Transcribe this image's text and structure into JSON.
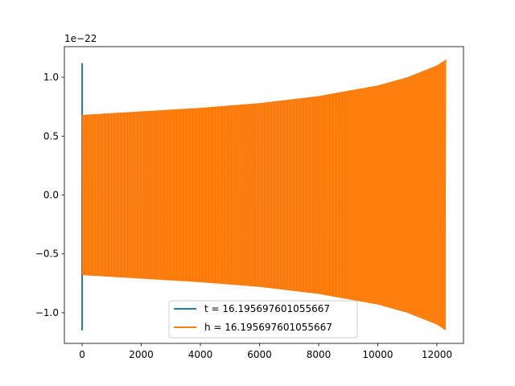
{
  "chart_data": {
    "type": "line",
    "title": "",
    "xlabel": "",
    "ylabel": "",
    "offset_text": "1e−22",
    "xlim": [
      -600,
      12900
    ],
    "ylim": [
      -1.26,
      1.26
    ],
    "xticks": [
      0,
      2000,
      4000,
      6000,
      8000,
      10000,
      12000
    ],
    "xtick_labels": [
      "0",
      "2000",
      "4000",
      "6000",
      "8000",
      "10000",
      "12000"
    ],
    "yticks": [
      1.0,
      0.5,
      0.0,
      -0.5,
      -1.0
    ],
    "ytick_labels": [
      "1.0",
      "0.5",
      "0.0",
      "−0.5",
      "−1.0"
    ],
    "grid": false,
    "legend_position": "lower-center",
    "series": [
      {
        "name": "t = 16.195697601055667",
        "color": "#1f77b4",
        "description_points": {
          "x": [
            0,
            0,
            0
          ],
          "y": [
            1.12,
            -1.15,
            0.05
          ]
        }
      },
      {
        "name": "h = 16.195697601055667",
        "color": "#ff7f0e",
        "envelope_x": [
          0,
          2000,
          4000,
          6000,
          8000,
          10000,
          11000,
          12000,
          12300
        ],
        "envelope_y": [
          0.68,
          0.71,
          0.74,
          0.78,
          0.84,
          0.93,
          1.0,
          1.1,
          1.15
        ],
        "x_end": 12300
      }
    ]
  }
}
